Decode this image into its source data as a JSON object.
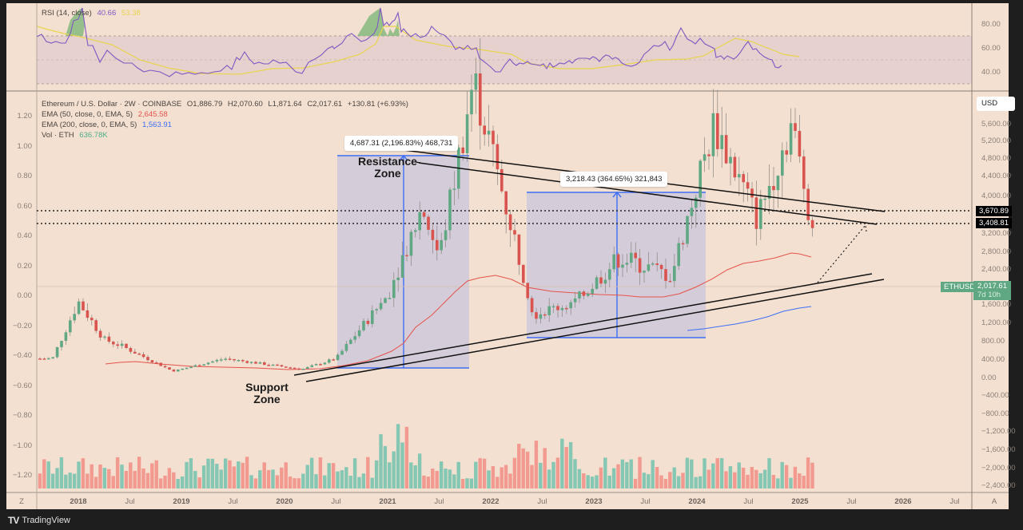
{
  "app": {
    "name": "TradingView"
  },
  "rsi_pane": {
    "title": "RSI (14, close)",
    "value": "40.66",
    "ma_value": "53.38",
    "axis_ticks": [
      "80.00",
      "60.00",
      "40.00"
    ],
    "colors": {
      "rsi": "#7e57c2",
      "ma": "#e8d44d",
      "band": "#d8c4c9"
    }
  },
  "main_pane": {
    "symbol_line": {
      "symbol": "Ethereum / U.S. Dollar · 2W · COINBASE",
      "open": "O1,886.79",
      "high": "H2,070.60",
      "low": "L1,871.64",
      "close": "C2,017.61",
      "change": "+130.81 (+6.93%)"
    },
    "indicators": [
      {
        "label": "EMA (50, close, 0, EMA, 5)",
        "value": "2,645.58",
        "color": "#e5534b"
      },
      {
        "label": "EMA (200, close, 0, EMA, 5)",
        "value": "1,563.91",
        "color": "#3d6ef5"
      },
      {
        "label": "Vol · ETH",
        "value": "636.78K",
        "color": "#4fae8a"
      }
    ],
    "currency_button": "USD",
    "right_axis_ticks": [
      "5,600.00",
      "5,200.00",
      "4,800.00",
      "4,400.00",
      "4,000.00",
      "3,200.00",
      "2,800.00",
      "2,400.00",
      "1,600.00",
      "1,200.00",
      "800.00",
      "400.00",
      "0.00",
      "−400.00",
      "−800.00",
      "−1,200.00",
      "−1,600.00",
      "−2,000.00",
      "−2,400.00"
    ],
    "left_axis_ticks": [
      "1.20",
      "1.00",
      "0.80",
      "0.60",
      "0.40",
      "0.20",
      "0.00",
      "−0.20",
      "−0.40",
      "−0.60",
      "−0.80",
      "−1.00",
      "−1.20"
    ],
    "price_tags": [
      {
        "value": "3,670.89",
        "bg": "#000000"
      },
      {
        "value": "3,408.81",
        "bg": "#000000"
      }
    ],
    "current_price": {
      "symbol": "ETHUSD",
      "value": "2,017.61",
      "countdown": "7d 10h",
      "bg": "#5fa883"
    },
    "measurements": [
      {
        "text": "4,687.31 (2,196.83%) 468,731"
      },
      {
        "text": "3,218.43 (364.65%) 321,843"
      }
    ],
    "annotations": {
      "resistance_line1": "Resistance",
      "resistance_line2": "Zone",
      "support_line1": "Support",
      "support_line2": "Zone"
    }
  },
  "time_axis": {
    "labels": [
      {
        "text": "2018",
        "year": true
      },
      {
        "text": "Jul",
        "year": false
      },
      {
        "text": "2019",
        "year": true
      },
      {
        "text": "Jul",
        "year": false
      },
      {
        "text": "2020",
        "year": true
      },
      {
        "text": "Jul",
        "year": false
      },
      {
        "text": "2021",
        "year": true
      },
      {
        "text": "Jul",
        "year": false
      },
      {
        "text": "2022",
        "year": true
      },
      {
        "text": "Jul",
        "year": false
      },
      {
        "text": "2023",
        "year": true
      },
      {
        "text": "Jul",
        "year": false
      },
      {
        "text": "2024",
        "year": true
      },
      {
        "text": "Jul",
        "year": false
      },
      {
        "text": "2025",
        "year": true
      },
      {
        "text": "Jul",
        "year": false
      },
      {
        "text": "2026",
        "year": true
      },
      {
        "text": "Jul",
        "year": false
      }
    ],
    "left_corner": "Z",
    "right_corner": "A"
  },
  "footer": {
    "brand": "TradingView"
  },
  "chart_data": {
    "type": "candlestick",
    "title": "Ethereum / U.S. Dollar · 2W · COINBASE",
    "xlabel": "",
    "ylabel": "USD",
    "ylim": [
      -2600,
      5800
    ],
    "x_range": [
      "2017-10",
      "2026-10"
    ],
    "ohlc_latest": {
      "open": 1886.79,
      "high": 2070.6,
      "low": 1871.64,
      "close": 2017.61,
      "change": 130.81,
      "change_pct": 6.93
    },
    "approx_close_path": [
      {
        "t": "2017-10",
        "price": 300
      },
      {
        "t": "2018-01",
        "price": 1200
      },
      {
        "t": "2018-04",
        "price": 600
      },
      {
        "t": "2018-06",
        "price": 500
      },
      {
        "t": "2018-12",
        "price": 100
      },
      {
        "t": "2019-06",
        "price": 300
      },
      {
        "t": "2020-03",
        "price": 130
      },
      {
        "t": "2020-07",
        "price": 300
      },
      {
        "t": "2021-01",
        "price": 1300
      },
      {
        "t": "2021-05",
        "price": 2700
      },
      {
        "t": "2021-07",
        "price": 1900
      },
      {
        "t": "2021-11",
        "price": 4700
      },
      {
        "t": "2022-06",
        "price": 1000
      },
      {
        "t": "2022-11",
        "price": 1200
      },
      {
        "t": "2023-04",
        "price": 1900
      },
      {
        "t": "2023-10",
        "price": 1600
      },
      {
        "t": "2024-03",
        "price": 4000
      },
      {
        "t": "2024-08",
        "price": 2500
      },
      {
        "t": "2024-12",
        "price": 4000
      },
      {
        "t": "2025-03",
        "price": 2017.61
      }
    ],
    "series": [
      {
        "name": "EMA 50",
        "last": 2645.58,
        "color": "#e5534b"
      },
      {
        "name": "EMA 200",
        "last": 1563.91,
        "color": "#3d6ef5"
      },
      {
        "name": "Volume ETH",
        "last": "636.78K"
      },
      {
        "name": "RSI 14",
        "last": 40.66,
        "ma_last": 53.38
      }
    ],
    "horizontal_levels": [
      3670.89,
      3408.81
    ],
    "measurements": [
      {
        "from": 200,
        "to": 4887,
        "change": 4687.31,
        "pct": 2196.83,
        "label": "4,687.31 (2,196.83%) 468,731"
      },
      {
        "from": 880,
        "to": 4098,
        "change": 3218.43,
        "pct": 364.65,
        "label": "3,218.43 (364.65%) 321,843"
      }
    ],
    "annotations": [
      "Resistance Zone",
      "Support Zone"
    ],
    "grid": false,
    "legend_position": "top-left"
  }
}
